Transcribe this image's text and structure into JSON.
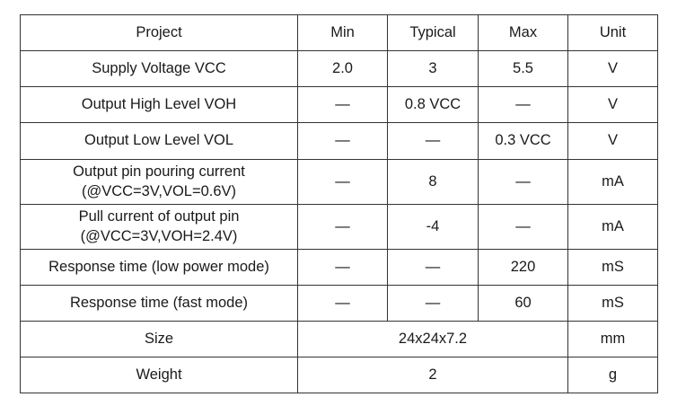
{
  "headers": [
    "Project",
    "Min",
    "Typical",
    "Max",
    "Unit"
  ],
  "rows": [
    {
      "project": "Supply Voltage VCC",
      "min": "2.0",
      "typical": "3",
      "max": "5.5",
      "unit": "V"
    },
    {
      "project": "Output High Level VOH",
      "min": "—",
      "typical": "0.8 VCC",
      "max": "—",
      "unit": "V"
    },
    {
      "project": "Output Low Level VOL",
      "min": "—",
      "typical": "—",
      "max": "0.3 VCC",
      "unit": "V"
    },
    {
      "project_line1": "Output pin pouring current",
      "project_line2": "(@VCC=3V,VOL=0.6V)",
      "min": "—",
      "typical": "8",
      "max": "—",
      "unit": "mA"
    },
    {
      "project_line1": "Pull current of output pin",
      "project_line2": "(@VCC=3V,VOH=2.4V)",
      "min": "—",
      "typical": "-4",
      "max": "—",
      "unit": "mA"
    },
    {
      "project": "Response time (low power mode)",
      "min": "—",
      "typical": "—",
      "max": "220",
      "unit": "mS"
    },
    {
      "project": "Response time (fast mode)",
      "min": "—",
      "typical": "—",
      "max": "60",
      "unit": "mS"
    },
    {
      "project": "Size",
      "value": "24x24x7.2",
      "unit": "mm"
    },
    {
      "project": "Weight",
      "value": "2",
      "unit": "g"
    }
  ]
}
